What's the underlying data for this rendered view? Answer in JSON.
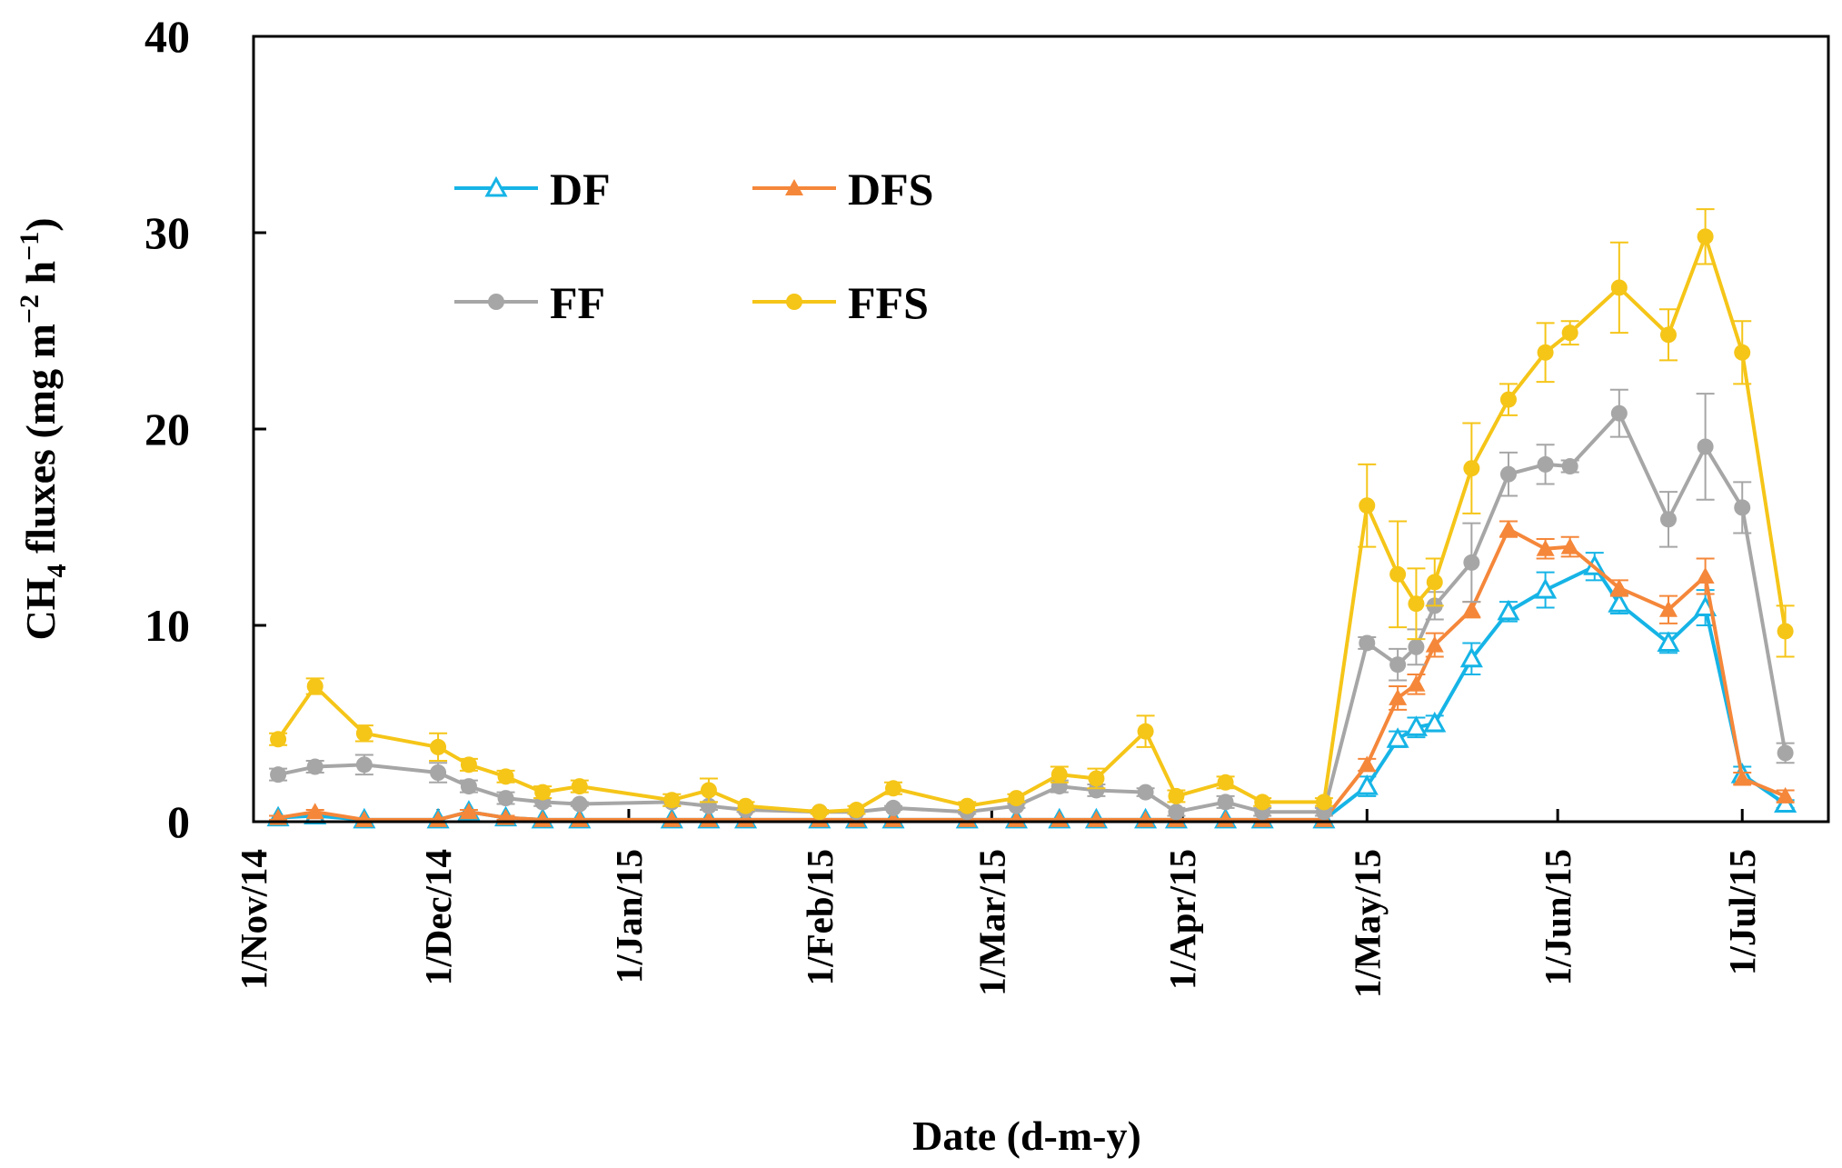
{
  "chart_data": {
    "type": "line",
    "title": "",
    "xlabel": "Date (d-m-y)",
    "ylabel_main": "CH",
    "ylabel_sub": "4",
    "ylabel_rest": " fluxes (mg m",
    "ylabel_sup1": "−2",
    "ylabel_mid": " h",
    "ylabel_sup2": "−1",
    "ylabel_end": ")",
    "ylim": [
      0,
      40
    ],
    "xlim_days": [
      0,
      256
    ],
    "yticks": [
      0,
      10,
      20,
      30,
      40
    ],
    "xticks": [
      {
        "label": "1/Nov/14",
        "day": 0
      },
      {
        "label": "1/Dec/14",
        "day": 30
      },
      {
        "label": "1/Jan/15",
        "day": 61
      },
      {
        "label": "1/Feb/15",
        "day": 92
      },
      {
        "label": "1/Mar/15",
        "day": 120
      },
      {
        "label": "1/Apr/15",
        "day": 151
      },
      {
        "label": "1/May/15",
        "day": 181
      },
      {
        "label": "1/Jun/15",
        "day": 212
      },
      {
        "label": "1/Jul/15",
        "day": 242
      }
    ],
    "legend": [
      {
        "series": "DF",
        "label": "DF"
      },
      {
        "series": "DFS",
        "label": "DFS"
      },
      {
        "series": "FF",
        "label": "FF"
      },
      {
        "series": "FFS",
        "label": "FFS"
      }
    ],
    "series": [
      {
        "name": "DF",
        "color": "#16b4e6",
        "marker": "triangle-open",
        "x": [
          4,
          10,
          18,
          30,
          35,
          41,
          47,
          53,
          68,
          74,
          80,
          92,
          98,
          104,
          116,
          124,
          131,
          137,
          145,
          150,
          158,
          164,
          174,
          181,
          186,
          189,
          192,
          198,
          204,
          210,
          218,
          222,
          230,
          236,
          242,
          249
        ],
        "y": [
          0.2,
          0.3,
          0.1,
          0.1,
          0.5,
          0.2,
          0.1,
          0.1,
          0.1,
          0.1,
          0.1,
          0.1,
          0.1,
          0.1,
          0.1,
          0.1,
          0.1,
          0.1,
          0.1,
          0.1,
          0.1,
          0.1,
          0.1,
          1.8,
          4.2,
          4.8,
          5.0,
          8.3,
          10.7,
          11.8,
          13.0,
          11.1,
          9.1,
          10.9,
          2.4,
          0.9
        ],
        "err": [
          0,
          0,
          0,
          0,
          0,
          0,
          0,
          0,
          0,
          0,
          0,
          0,
          0,
          0,
          0,
          0,
          0,
          0,
          0,
          0,
          0,
          0,
          0,
          0.5,
          0.4,
          0.5,
          0.4,
          0.8,
          0.5,
          0.9,
          0.7,
          0.5,
          0.5,
          0.9,
          0.4,
          0.2
        ]
      },
      {
        "name": "DFS",
        "color": "#f5873a",
        "marker": "triangle-filled",
        "x": [
          4,
          10,
          18,
          30,
          35,
          41,
          47,
          53,
          68,
          74,
          80,
          92,
          98,
          104,
          116,
          124,
          131,
          137,
          145,
          150,
          158,
          164,
          174,
          181,
          186,
          189,
          192,
          198,
          204,
          210,
          214,
          222,
          230,
          236,
          242,
          249
        ],
        "y": [
          0.2,
          0.5,
          0.1,
          0.1,
          0.5,
          0.2,
          0.1,
          0.1,
          0.1,
          0.1,
          0.1,
          0.1,
          0.1,
          0.1,
          0.1,
          0.1,
          0.1,
          0.1,
          0.1,
          0.1,
          0.1,
          0.1,
          0.1,
          2.9,
          6.3,
          7.0,
          9.0,
          10.8,
          14.9,
          13.9,
          14.0,
          11.9,
          10.8,
          12.5,
          2.2,
          1.3
        ],
        "err": [
          0.1,
          0.1,
          0,
          0,
          0.1,
          0.1,
          0,
          0,
          0,
          0,
          0,
          0,
          0,
          0,
          0,
          0,
          0,
          0,
          0,
          0,
          0,
          0,
          0,
          0.3,
          0.6,
          0.5,
          0.6,
          0.4,
          0.4,
          0.5,
          0.5,
          0.4,
          0.7,
          0.9,
          0.3,
          0.3
        ]
      },
      {
        "name": "FF",
        "color": "#a6a6a6",
        "marker": "circle",
        "x": [
          4,
          10,
          18,
          30,
          35,
          41,
          47,
          53,
          68,
          74,
          80,
          92,
          98,
          104,
          116,
          124,
          131,
          137,
          145,
          150,
          158,
          164,
          174,
          181,
          186,
          189,
          192,
          198,
          204,
          210,
          214,
          222,
          230,
          236,
          242,
          249
        ],
        "y": [
          2.4,
          2.8,
          2.9,
          2.5,
          1.8,
          1.2,
          1.0,
          0.9,
          1.0,
          0.8,
          0.6,
          0.5,
          0.5,
          0.7,
          0.5,
          0.8,
          1.8,
          1.6,
          1.5,
          0.5,
          1.0,
          0.5,
          0.5,
          9.1,
          8.0,
          8.9,
          11.0,
          13.2,
          17.7,
          18.2,
          18.1,
          20.8,
          15.4,
          19.1,
          16.0,
          3.5
        ],
        "err": [
          0.3,
          0.3,
          0.5,
          0.5,
          0.3,
          0.3,
          0.2,
          0.1,
          0.2,
          0.2,
          0.1,
          0.1,
          0.1,
          0.1,
          0.1,
          0.1,
          0.3,
          0.3,
          0.2,
          0.2,
          0.3,
          0.2,
          0.2,
          0.3,
          0.8,
          0.9,
          0.7,
          2.0,
          1.1,
          1.0,
          0.3,
          1.2,
          1.4,
          2.7,
          1.3,
          0.5
        ]
      },
      {
        "name": "FFS",
        "color": "#f5c518",
        "marker": "circle",
        "x": [
          4,
          10,
          18,
          30,
          35,
          41,
          47,
          53,
          68,
          74,
          80,
          92,
          98,
          104,
          116,
          124,
          131,
          137,
          145,
          150,
          158,
          164,
          174,
          181,
          186,
          189,
          192,
          198,
          204,
          210,
          214,
          222,
          230,
          236,
          242,
          249
        ],
        "y": [
          4.2,
          6.9,
          4.5,
          3.8,
          2.9,
          2.3,
          1.5,
          1.8,
          1.1,
          1.6,
          0.8,
          0.5,
          0.6,
          1.7,
          0.8,
          1.2,
          2.4,
          2.2,
          4.6,
          1.3,
          2.0,
          1.0,
          1.0,
          16.1,
          12.6,
          11.1,
          12.2,
          18.0,
          21.5,
          23.9,
          24.9,
          27.2,
          24.8,
          29.8,
          23.9,
          9.7
        ],
        "err": [
          0.3,
          0.4,
          0.4,
          0.7,
          0.3,
          0.3,
          0.3,
          0.3,
          0.3,
          0.6,
          0.2,
          0.1,
          0.2,
          0.3,
          0.2,
          0.2,
          0.4,
          0.5,
          0.8,
          0.3,
          0.3,
          0.2,
          0.2,
          2.1,
          2.7,
          1.8,
          1.2,
          2.3,
          0.8,
          1.5,
          0.6,
          2.3,
          1.3,
          1.4,
          1.6,
          1.3
        ]
      }
    ]
  }
}
